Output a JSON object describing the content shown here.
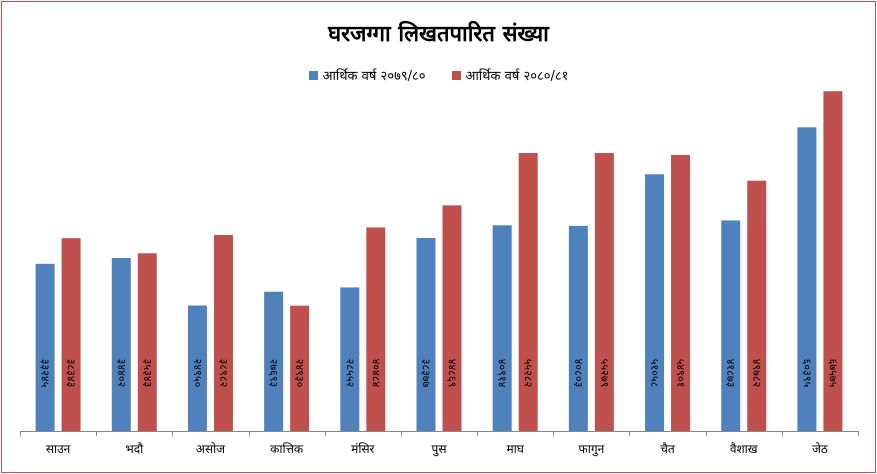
{
  "chart_data": {
    "type": "bar",
    "title": "घरजग्गा लिखतपारित संख्या",
    "categories": [
      "साउन",
      "भदौ",
      "असोज",
      "कात्तिक",
      "मंसिर",
      "पुस",
      "माघ",
      "फागुन",
      "चैत",
      "वैशाख",
      "जेठ"
    ],
    "series": [
      {
        "name": "आर्थिक वर्ष २०७९/८०",
        "color": "#4f81bd",
        "values": [
          33245,
          34402,
          24950,
          27693,
          28552,
          38377,
          40914,
          40803,
          51058,
          41873,
          60395
        ],
        "labels": [
          "३३२४५",
          "३४४०२",
          "२४९५०",
          "२७६९३",
          "२८५५२",
          "३८३७७",
          "४०९१४",
          "४०८०३",
          "५१०५८",
          "४१८७३",
          "६०३९५"
        ]
      },
      {
        "name": "आर्थिक वर्ष २०८०/८१",
        "color": "#c0504d",
        "values": [
          38343,
          35343,
          38982,
          24930,
          40484,
          44869,
          55282,
          55279,
          54901,
          49782,
          67575
        ],
        "labels": [
          "३८३४३",
          "३५३४३",
          "३८९८२",
          "२४९३०",
          "४०४८४",
          "४४८६९",
          "५५२८२",
          "५५२७९",
          "५४९०१",
          "४९७८२",
          "६७५७५"
        ]
      }
    ],
    "ylim": [
      0,
      70000
    ],
    "grid": false,
    "legend": "top"
  }
}
